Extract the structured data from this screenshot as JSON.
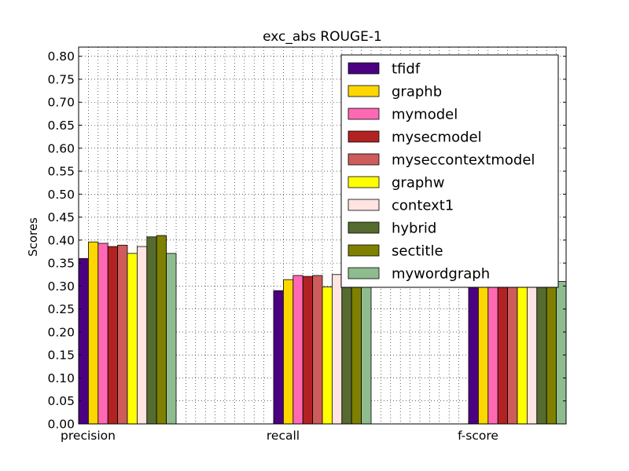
{
  "chart_data": {
    "type": "bar",
    "title": "exc_abs ROUGE-1",
    "xlabel": "",
    "ylabel": "Scores",
    "ylim": [
      0,
      0.82
    ],
    "yticks": [
      "0.00",
      "0.05",
      "0.10",
      "0.15",
      "0.20",
      "0.25",
      "0.30",
      "0.35",
      "0.40",
      "0.45",
      "0.50",
      "0.55",
      "0.60",
      "0.65",
      "0.70",
      "0.75",
      "0.80"
    ],
    "categories": [
      "precision",
      "recall",
      "f-score"
    ],
    "grid": true,
    "legend_position": "top-right",
    "series": [
      {
        "name": "tfidf",
        "color": "#4b0082",
        "values": [
          0.36,
          0.29,
          0.3
        ]
      },
      {
        "name": "graphb",
        "color": "#ffd700",
        "values": [
          0.396,
          0.314,
          0.33
        ]
      },
      {
        "name": "mymodel",
        "color": "#ff69b4",
        "values": [
          0.393,
          0.323,
          0.33
        ]
      },
      {
        "name": "mysecmodel",
        "color": "#b22222",
        "values": [
          0.386,
          0.321,
          0.33
        ]
      },
      {
        "name": "myseccontextmodel",
        "color": "#cd5c5c",
        "values": [
          0.389,
          0.323,
          0.33
        ]
      },
      {
        "name": "graphw",
        "color": "#ffff00",
        "values": [
          0.371,
          0.298,
          0.31
        ]
      },
      {
        "name": "context1",
        "color": "#ffe4e1",
        "values": [
          0.386,
          0.325,
          0.33
        ]
      },
      {
        "name": "hybrid",
        "color": "#556b2f",
        "values": [
          0.407,
          0.334,
          0.34
        ]
      },
      {
        "name": "sectitle",
        "color": "#808000",
        "values": [
          0.41,
          0.334,
          0.34
        ]
      },
      {
        "name": "mywordgraph",
        "color": "#8fbc8f",
        "values": [
          0.371,
          0.298,
          0.31
        ]
      }
    ]
  }
}
